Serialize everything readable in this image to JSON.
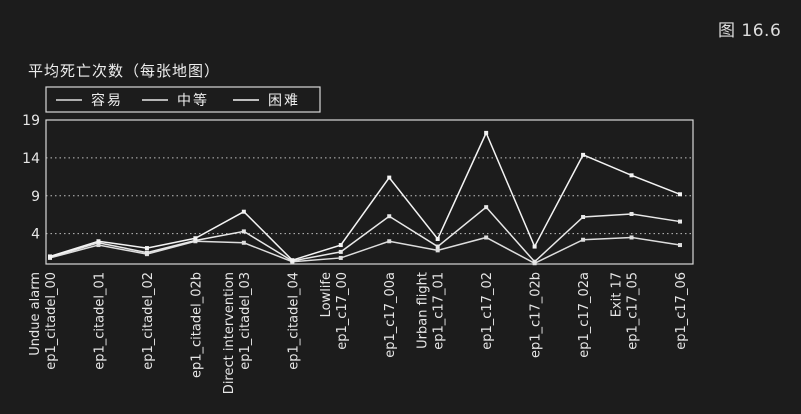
{
  "figure_label": "图 16.6",
  "chart_data": {
    "type": "line",
    "title": "平均死亡次数（每张地图）",
    "xlabel": "",
    "ylabel": "",
    "ylim": [
      0,
      19
    ],
    "yticks": [
      4,
      9,
      14,
      19
    ],
    "grid": "horizontal dotted",
    "legend_position": "top-left",
    "categories": [
      [
        "Undue alarm",
        "ep1_citadel_00"
      ],
      [
        "ep1_citadel_01"
      ],
      [
        "ep1_citadel_02"
      ],
      [
        "ep1_citadel_02b"
      ],
      [
        "Direct intervention",
        "ep1_citadel_03"
      ],
      [
        "ep1_citadel_04"
      ],
      [
        "Lowlife",
        "ep1_c17_00"
      ],
      [
        "ep1_c17_00a"
      ],
      [
        "Urban flight",
        "ep1_c17_01"
      ],
      [
        "ep1_c17_02"
      ],
      [
        "ep1_c17_02b"
      ],
      [
        "ep1_c17_02a"
      ],
      [
        "Exit 17",
        "ep1_c17_05"
      ],
      [
        "ep1_c17_06"
      ]
    ],
    "series": [
      {
        "name": "容易",
        "color": "#dddddd",
        "values": [
          0.8,
          2.5,
          1.3,
          3.0,
          2.8,
          0.3,
          0.8,
          3.0,
          1.8,
          3.5,
          0.1,
          3.2,
          3.5,
          2.5
        ]
      },
      {
        "name": "中等",
        "color": "#e8e8e8",
        "values": [
          0.9,
          2.8,
          1.5,
          3.1,
          4.3,
          0.4,
          1.6,
          6.3,
          2.3,
          7.5,
          0.3,
          6.2,
          6.6,
          5.6
        ]
      },
      {
        "name": "困难",
        "color": "#f4f4f4",
        "values": [
          1.0,
          3.0,
          2.1,
          3.4,
          6.9,
          0.5,
          2.5,
          11.4,
          3.3,
          17.3,
          2.3,
          14.4,
          11.7,
          9.2
        ]
      }
    ]
  }
}
